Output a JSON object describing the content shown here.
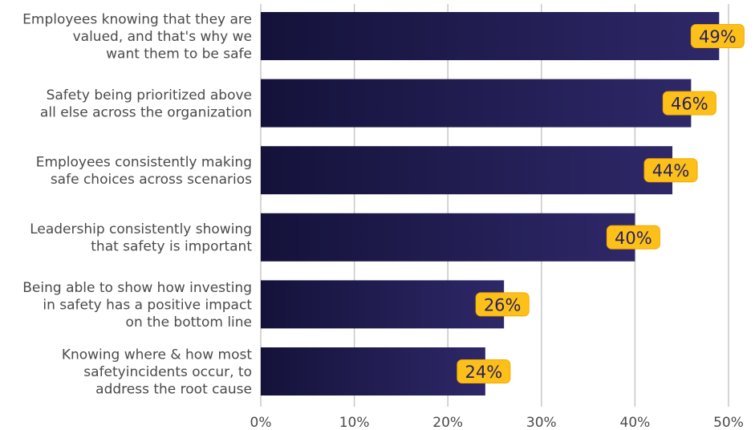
{
  "chart_data": {
    "type": "bar",
    "orientation": "horizontal",
    "categories": [
      [
        "Employees knowing that they are",
        "valued, and that's why we",
        "want them to be safe"
      ],
      [
        "Safety being prioritized above",
        "all else across the organization"
      ],
      [
        "Employees consistently making",
        "safe choices across scenarios"
      ],
      [
        "Leadership consistently showing",
        "that safety is important"
      ],
      [
        "Being able to show how investing",
        "in safety has a positive impact",
        "on the bottom line"
      ],
      [
        "Knowing where & how most",
        "safetyincidents occur, to",
        "address the root cause"
      ]
    ],
    "values": [
      49,
      46,
      44,
      40,
      26,
      24
    ],
    "data_labels": [
      "49%",
      "46%",
      "44%",
      "40%",
      "26%",
      "24%"
    ],
    "x_ticks": [
      "0%",
      "10%",
      "20%",
      "30%",
      "40%",
      "50%"
    ],
    "xlim": [
      0,
      50
    ],
    "grid": true,
    "legend": "none",
    "colors": {
      "bar_start": "#14123a",
      "bar_end": "#2e2868",
      "label_fill": "#fdc019",
      "label_border": "#f5a800",
      "label_text": "#262060",
      "grid": "#c8c8c8",
      "text": "#4a4a4a"
    }
  }
}
